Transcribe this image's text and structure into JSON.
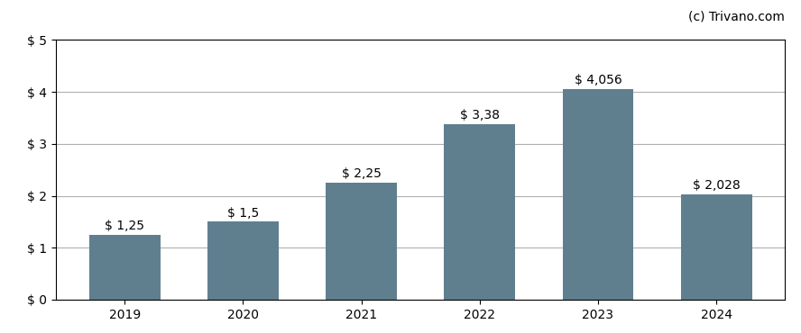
{
  "chart_data": {
    "type": "bar",
    "categories": [
      "2019",
      "2020",
      "2021",
      "2022",
      "2023",
      "2024"
    ],
    "values": [
      1.25,
      1.5,
      2.25,
      3.38,
      4.056,
      2.028
    ],
    "value_labels": [
      "$ 1,25",
      "$ 1,5",
      "$ 2,25",
      "$ 3,38",
      "$ 4,056",
      "$ 2,028"
    ],
    "data_labels": true,
    "color": "#5f7f8f",
    "ylim": [
      0,
      5
    ],
    "yticks": [
      {
        "value": 0,
        "label": "$ 0"
      },
      {
        "value": 1,
        "label": "$ 1"
      },
      {
        "value": 2,
        "label": "$ 2"
      },
      {
        "value": 3,
        "label": "$ 3"
      },
      {
        "value": 4,
        "label": "$ 4"
      },
      {
        "value": 5,
        "label": "$ 5"
      }
    ],
    "grid": true,
    "annotations": [
      "(c) Trivano.com"
    ]
  }
}
